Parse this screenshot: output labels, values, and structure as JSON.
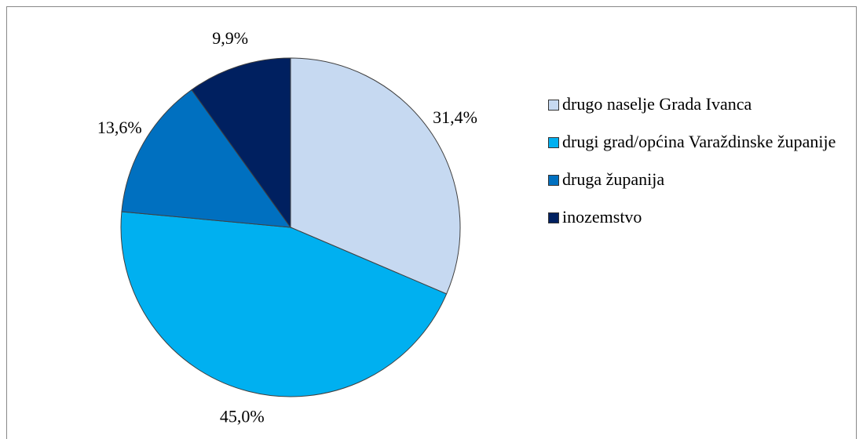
{
  "chart_data": {
    "type": "pie",
    "categories": [
      "drugo naselje Grada Ivanca",
      "drugi grad/općina Varaždinske županije",
      "druga županija",
      "inozemstvo"
    ],
    "values": [
      31.4,
      45.0,
      13.6,
      9.9
    ],
    "value_labels": [
      "31,4%",
      "45,0%",
      "13,6%",
      "9,9%"
    ],
    "colors": [
      "#c6d9f1",
      "#00b0f0",
      "#0070c0",
      "#002060"
    ],
    "legend": "right"
  }
}
